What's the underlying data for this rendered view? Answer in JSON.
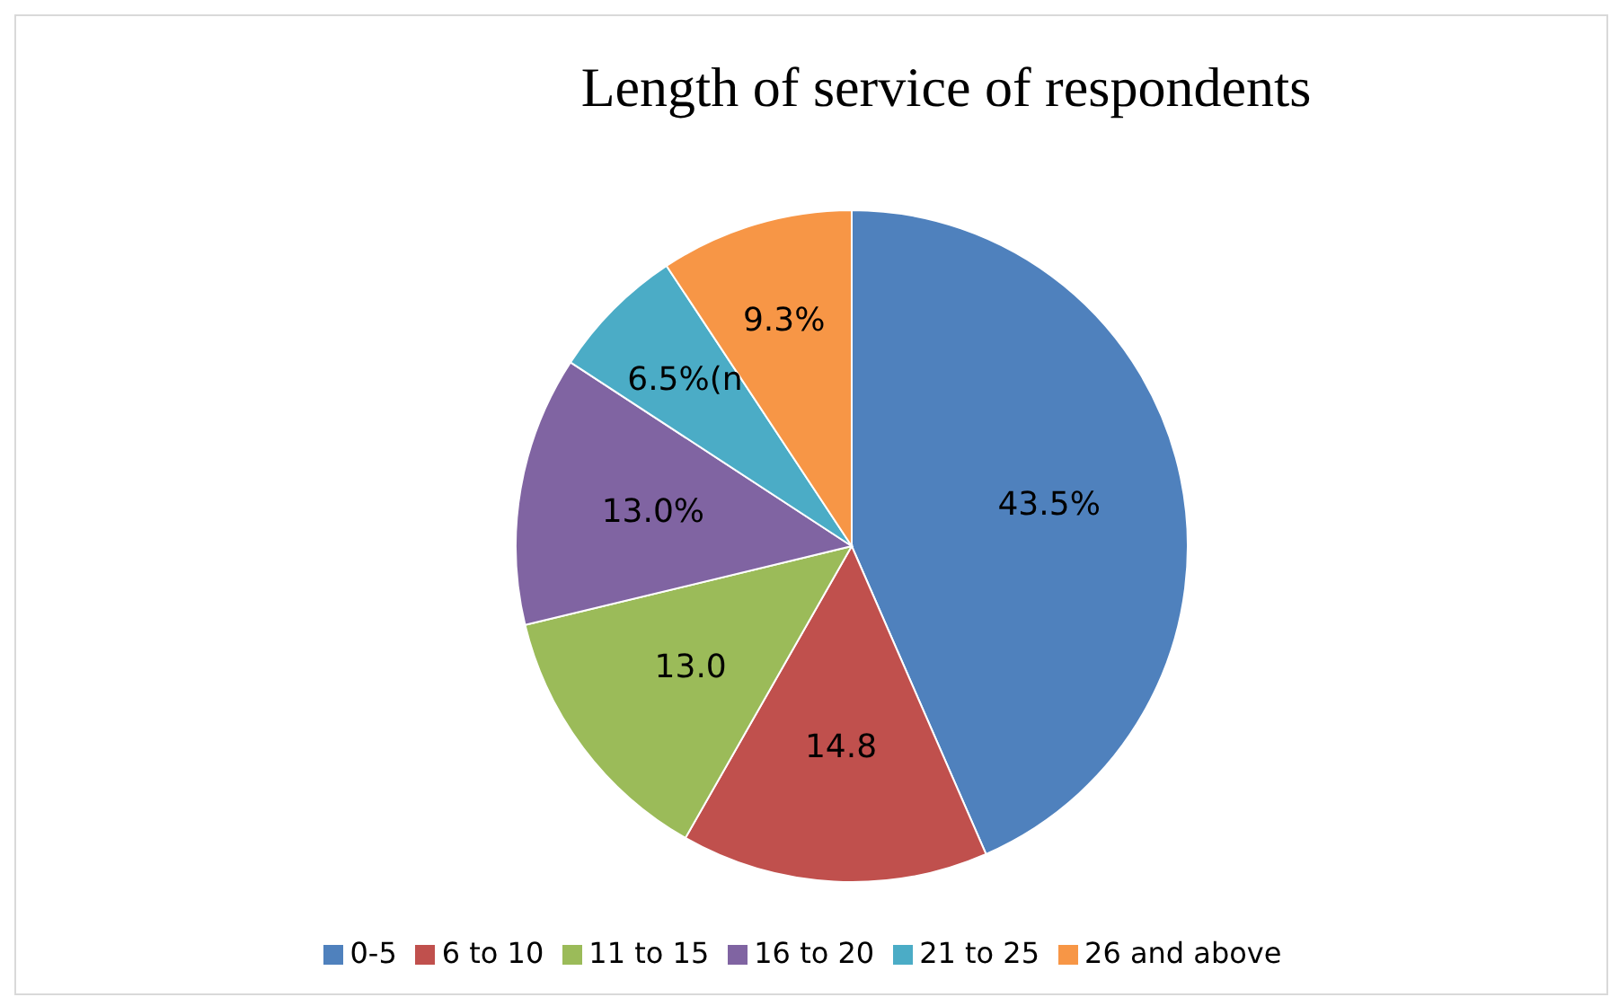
{
  "chart_data": {
    "type": "pie",
    "title": "Length of service of respondents",
    "categories": [
      "0-5",
      "6 to 10",
      "11 to 15",
      "16 to 20",
      "21 to 25",
      "26 and above"
    ],
    "values": [
      43.5,
      14.8,
      13.0,
      13.0,
      6.5,
      9.3
    ],
    "value_labels": [
      "43.5%",
      "14.8",
      "13.0",
      "13.0%",
      "6.5%(n",
      "9.3%"
    ],
    "colors": [
      "#4f81bd",
      "#c0504d",
      "#9bbb59",
      "#8064a2",
      "#4bacc6",
      "#f79646"
    ],
    "legend": "bottom"
  }
}
